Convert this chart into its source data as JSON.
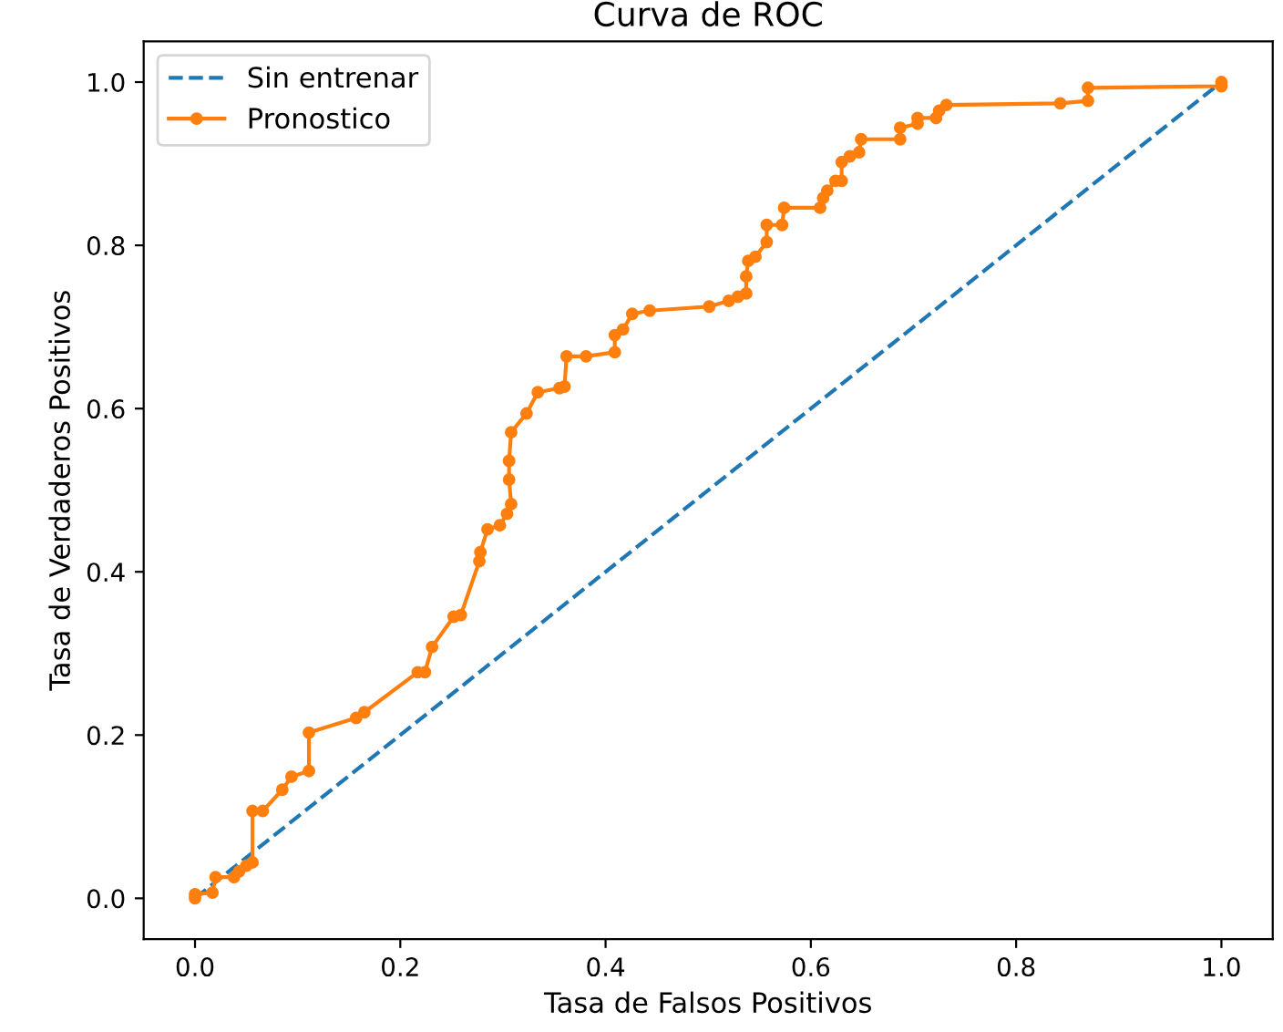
{
  "chart_data": {
    "type": "line",
    "title": "Curva de ROC",
    "xlabel": "Tasa de Falsos Positivos",
    "ylabel": "Tasa de Verdaderos Positivos",
    "xlim": [
      -0.05,
      1.05
    ],
    "ylim": [
      -0.05,
      1.05
    ],
    "xticks": [
      {
        "value": 0,
        "label": "0.0"
      },
      0.2,
      0.4,
      0.6,
      0.8,
      {
        "value": 1,
        "label": "1.0"
      }
    ],
    "yticks": [
      {
        "value": 0,
        "label": "0.0"
      },
      0.2,
      0.4,
      0.6,
      0.8,
      {
        "value": 1,
        "label": "1.0"
      }
    ],
    "legend": "top left",
    "grid": false,
    "series": [
      {
        "name": "Sin entrenar",
        "color": "#1f77b4",
        "line_style": "dashed",
        "marker": "none",
        "x": [
          0,
          1
        ],
        "values": [
          0,
          1
        ]
      },
      {
        "name": "Pronostico",
        "color": "#ff7f0e",
        "line_style": "solid",
        "marker": "circle",
        "x": [
          0,
          0,
          0.017,
          0.02,
          0.038,
          0.043,
          0.05,
          0.056,
          0.056,
          0.066,
          0.085,
          0.094,
          0.111,
          0.111,
          0.157,
          0.165,
          0.217,
          0.224,
          0.231,
          0.252,
          0.259,
          0.277,
          0.278,
          0.285,
          0.297,
          0.304,
          0.308,
          0.306,
          0.306,
          0.308,
          0.323,
          0.334,
          0.355,
          0.36,
          0.362,
          0.381,
          0.409,
          0.409,
          0.417,
          0.426,
          0.443,
          0.501,
          0.52,
          0.529,
          0.537,
          0.537,
          0.539,
          0.546,
          0.557,
          0.557,
          0.572,
          0.574,
          0.609,
          0.612,
          0.616,
          0.624,
          0.63,
          0.63,
          0.638,
          0.647,
          0.649,
          0.687,
          0.687,
          0.704,
          0.704,
          0.722,
          0.725,
          0.732,
          0.843,
          0.87,
          0.87,
          1.0,
          1.0
        ],
        "values": [
          0,
          0.005,
          0.007,
          0.026,
          0.026,
          0.033,
          0.04,
          0.044,
          0.107,
          0.107,
          0.133,
          0.149,
          0.156,
          0.203,
          0.221,
          0.228,
          0.277,
          0.277,
          0.308,
          0.345,
          0.347,
          0.413,
          0.424,
          0.452,
          0.457,
          0.471,
          0.483,
          0.513,
          0.536,
          0.571,
          0.594,
          0.62,
          0.625,
          0.627,
          0.664,
          0.664,
          0.669,
          0.69,
          0.697,
          0.716,
          0.72,
          0.725,
          0.732,
          0.737,
          0.741,
          0.762,
          0.781,
          0.786,
          0.804,
          0.825,
          0.825,
          0.846,
          0.846,
          0.858,
          0.867,
          0.879,
          0.879,
          0.902,
          0.909,
          0.914,
          0.93,
          0.93,
          0.944,
          0.949,
          0.956,
          0.956,
          0.965,
          0.972,
          0.974,
          0.977,
          0.993,
          0.995,
          1.0
        ]
      }
    ]
  }
}
